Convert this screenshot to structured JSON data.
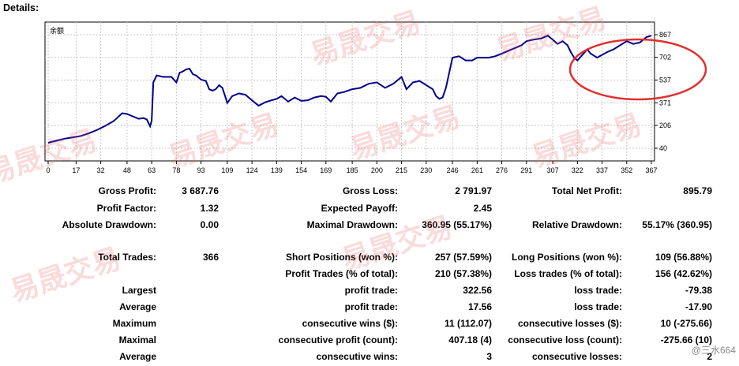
{
  "header": {
    "title": "Details:"
  },
  "chart_data": {
    "type": "line",
    "title": "",
    "series_label": "余额",
    "xlabel": "",
    "ylabel": "",
    "x_ticks": [
      "0",
      "17",
      "32",
      "48",
      "63",
      "78",
      "93",
      "109",
      "124",
      "139",
      "154",
      "169",
      "185",
      "200",
      "215",
      "230",
      "246",
      "261",
      "276",
      "291",
      "307",
      "322",
      "337",
      "352",
      "367"
    ],
    "y_ticks": [
      "867",
      "702",
      "537",
      "371",
      "206",
      "40"
    ],
    "ylim": [
      40,
      867
    ],
    "xlim": [
      0,
      367
    ],
    "grid": true,
    "line_color": "#00008b",
    "annotation_color": "#e03030",
    "series": [
      {
        "x": [
          0,
          5,
          10,
          15,
          20,
          25,
          30,
          35,
          40,
          45,
          48,
          52,
          55,
          58,
          60,
          62,
          63,
          64,
          66,
          70,
          75,
          78,
          80,
          82,
          84,
          86,
          88,
          90,
          93,
          96,
          98,
          100,
          102,
          104,
          106,
          109,
          112,
          116,
          120,
          124,
          128,
          132,
          136,
          139,
          142,
          146,
          150,
          154,
          158,
          162,
          166,
          169,
          172,
          176,
          180,
          185,
          190,
          195,
          200,
          205,
          210,
          215,
          218,
          222,
          226,
          230,
          234,
          236,
          238,
          240,
          242,
          246,
          250,
          254,
          258,
          261,
          265,
          268,
          272,
          276,
          280,
          284,
          288,
          291,
          295,
          300,
          304,
          307,
          310,
          313,
          316,
          318,
          320,
          322,
          325,
          328,
          330,
          334,
          337,
          340,
          344,
          348,
          352,
          356,
          360,
          364,
          367
        ],
        "y": [
          80,
          95,
          110,
          120,
          130,
          150,
          175,
          205,
          240,
          295,
          290,
          270,
          255,
          260,
          250,
          200,
          240,
          520,
          570,
          560,
          560,
          520,
          590,
          600,
          615,
          620,
          580,
          570,
          540,
          530,
          470,
          460,
          470,
          500,
          480,
          370,
          420,
          440,
          430,
          390,
          350,
          375,
          390,
          400,
          420,
          380,
          410,
          385,
          390,
          410,
          420,
          415,
          380,
          440,
          450,
          470,
          480,
          510,
          520,
          480,
          510,
          560,
          470,
          520,
          530,
          500,
          470,
          420,
          400,
          410,
          480,
          700,
          710,
          680,
          680,
          700,
          700,
          700,
          710,
          730,
          750,
          770,
          790,
          820,
          830,
          840,
          860,
          830,
          800,
          820,
          790,
          740,
          700,
          680,
          720,
          760,
          730,
          700,
          720,
          740,
          760,
          790,
          820,
          800,
          810,
          850,
          860
        ]
      }
    ]
  },
  "stats": {
    "gross_profit": {
      "label": "Gross Profit:",
      "value": "3 687.76"
    },
    "profit_factor": {
      "label": "Profit Factor:",
      "value": "1.32"
    },
    "absolute_drawdown": {
      "label": "Absolute Drawdown:",
      "value": "0.00"
    },
    "total_trades": {
      "label": "Total Trades:",
      "value": "366"
    },
    "largest": "Largest",
    "average1": "Average",
    "maximum": "Maximum",
    "maximal": "Maximal",
    "average2": "Average",
    "gross_loss": {
      "label": "Gross Loss:",
      "value": "2 791.97"
    },
    "expected_payoff": {
      "label": "Expected Payoff:",
      "value": "2.45"
    },
    "maximal_drawdown": {
      "label": "Maximal Drawdown:",
      "value": "360.95 (55.17%)"
    },
    "short_positions": {
      "label": "Short Positions (won %):",
      "value": "257 (57.59%)"
    },
    "profit_trades": {
      "label": "Profit Trades (% of total):",
      "value": "210 (57.38%)"
    },
    "largest_profit": {
      "label": "profit trade:",
      "value": "322.56"
    },
    "average_profit": {
      "label": "profit trade:",
      "value": "17.56"
    },
    "max_consec_wins": {
      "label": "consecutive wins ($):",
      "value": "11 (112.07)"
    },
    "max_consec_profit": {
      "label": "consecutive profit (count):",
      "value": "407.18 (4)"
    },
    "avg_consec_wins": {
      "label": "consecutive wins:",
      "value": "3"
    },
    "total_net_profit": {
      "label": "Total Net Profit:",
      "value": "895.79"
    },
    "relative_drawdown": {
      "label": "Relative Drawdown:",
      "value": "55.17% (360.95)"
    },
    "long_positions": {
      "label": "Long Positions (won %):",
      "value": "109 (56.88%)"
    },
    "loss_trades": {
      "label": "Loss trades (% of total):",
      "value": "156 (42.62%)"
    },
    "largest_loss": {
      "label": "loss trade:",
      "value": "-79.38"
    },
    "average_loss": {
      "label": "loss trade:",
      "value": "-17.90"
    },
    "max_consec_losses": {
      "label": "consecutive losses ($):",
      "value": "10 (-275.66)"
    },
    "max_consec_loss": {
      "label": "consecutive loss (count):",
      "value": "-275.66 (10)"
    },
    "avg_consec_losses": {
      "label": "consecutive losses:",
      "value": "2"
    }
  },
  "watermarks": [
    "易晟交易",
    "易晟交易",
    "易晟交易",
    "易晟交易",
    "易晟交易",
    "易晟交易",
    "易晟交易",
    "易晟交易"
  ],
  "footer_mark": "@三水664"
}
